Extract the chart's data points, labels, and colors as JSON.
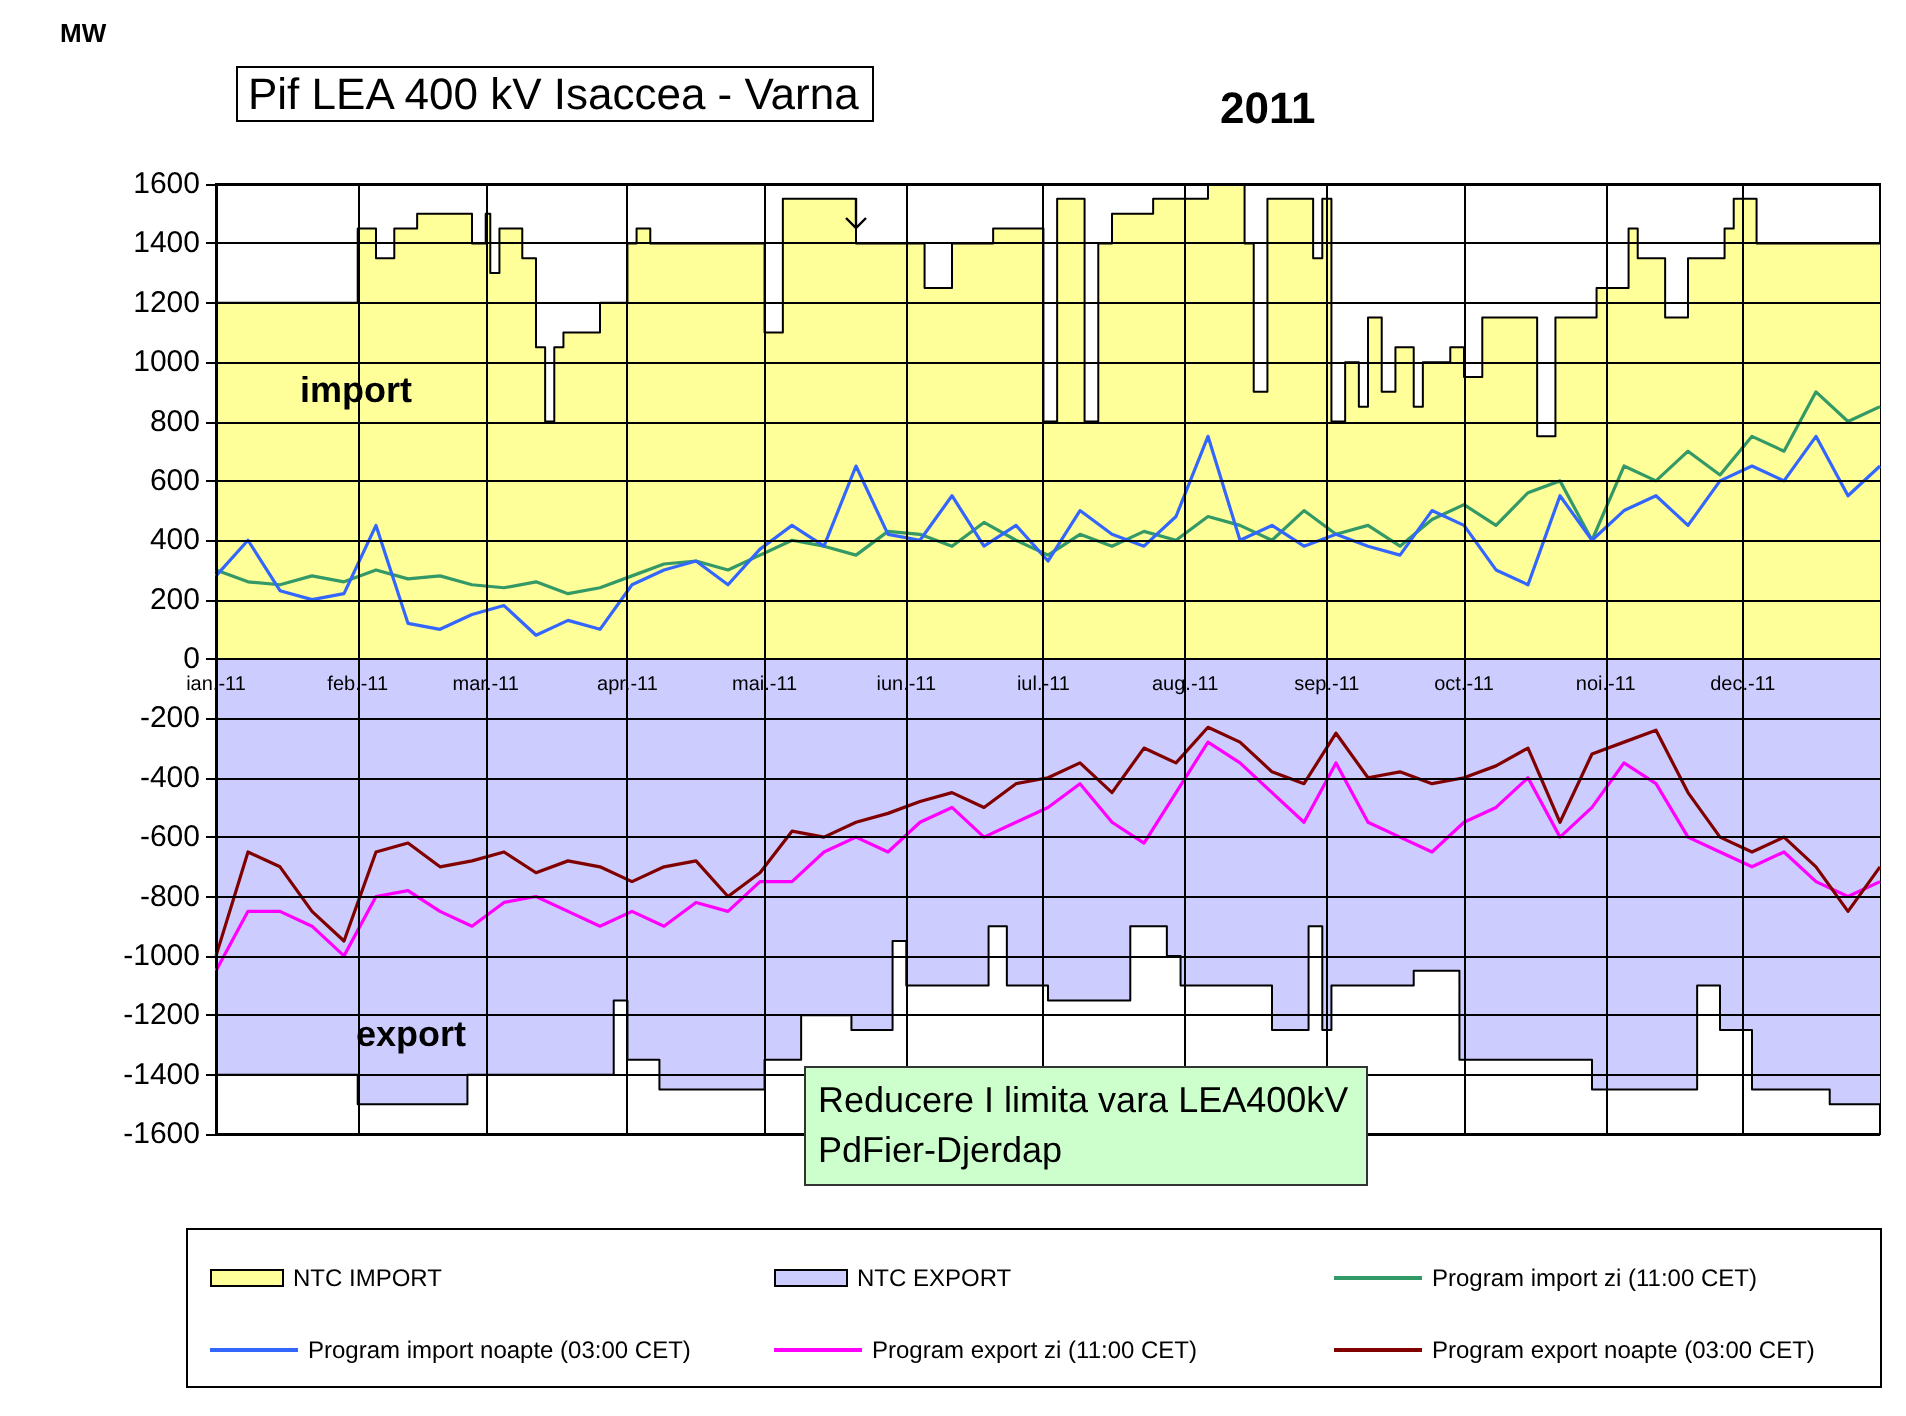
{
  "chart_data": {
    "type": "line",
    "title": "Pif LEA 400 kV Isaccea - Varna",
    "subtitle": "2011",
    "ylabel": "MW",
    "annotations": [
      "import",
      "export",
      "Reducere  I limita vara LEA400kV  PdFier-Djerdap"
    ],
    "xlim": [
      "2011-01-01",
      "2011-12-31"
    ],
    "xticks": [
      {
        "value": "2011-01-01",
        "label": "ian.-11"
      },
      {
        "value": "2011-02-01",
        "label": "feb.-11"
      },
      {
        "value": "2011-03-01",
        "label": "mar.-11"
      },
      {
        "value": "2011-04-01",
        "label": "apr.-11"
      },
      {
        "value": "2011-05-01",
        "label": "mai.-11"
      },
      {
        "value": "2011-06-01",
        "label": "iun.-11"
      },
      {
        "value": "2011-07-01",
        "label": "iul.-11"
      },
      {
        "value": "2011-08-01",
        "label": "aug.-11"
      },
      {
        "value": "2011-09-01",
        "label": "sep.-11"
      },
      {
        "value": "2011-10-01",
        "label": "oct.-11"
      },
      {
        "value": "2011-11-01",
        "label": "noi.-11"
      },
      {
        "value": "2011-12-01",
        "label": "dec.-11"
      }
    ],
    "ylim": [
      -1600,
      1600
    ],
    "yticks": [
      -1600,
      -1400,
      -1200,
      -1000,
      -800,
      -600,
      -400,
      -200,
      0,
      200,
      400,
      600,
      800,
      1000,
      1200,
      1400,
      1600
    ],
    "grid": true,
    "legend": "bottom",
    "series": [
      {
        "name": "NTC IMPORT",
        "type": "area",
        "color": "#ffff99",
        "x": [
          "2011-01-01",
          "2011-02-01",
          "2011-02-01",
          "2011-02-05",
          "2011-02-05",
          "2011-02-09",
          "2011-02-09",
          "2011-02-14",
          "2011-02-14",
          "2011-02-26",
          "2011-02-26",
          "2011-03-01",
          "2011-03-01",
          "2011-03-02",
          "2011-03-02",
          "2011-03-04",
          "2011-03-04",
          "2011-03-09",
          "2011-03-09",
          "2011-03-12",
          "2011-03-12",
          "2011-03-14",
          "2011-03-14",
          "2011-03-16",
          "2011-03-16",
          "2011-03-18",
          "2011-03-18",
          "2011-03-26",
          "2011-03-26",
          "2011-04-01",
          "2011-04-01",
          "2011-04-03",
          "2011-04-03",
          "2011-04-06",
          "2011-04-06",
          "2011-05-01",
          "2011-05-01",
          "2011-05-05",
          "2011-05-05",
          "2011-05-21",
          "2011-05-21",
          "2011-06-05",
          "2011-06-05",
          "2011-06-11",
          "2011-06-11",
          "2011-06-20",
          "2011-06-20",
          "2011-07-01",
          "2011-07-01",
          "2011-07-04",
          "2011-07-04",
          "2011-07-10",
          "2011-07-10",
          "2011-07-13",
          "2011-07-13",
          "2011-07-16",
          "2011-07-16",
          "2011-07-25",
          "2011-07-25",
          "2011-08-06",
          "2011-08-06",
          "2011-08-14",
          "2011-08-14",
          "2011-08-16",
          "2011-08-16",
          "2011-08-19",
          "2011-08-19",
          "2011-08-29",
          "2011-08-29",
          "2011-08-31",
          "2011-08-31",
          "2011-09-02",
          "2011-09-02",
          "2011-09-05",
          "2011-09-05",
          "2011-09-08",
          "2011-09-08",
          "2011-09-10",
          "2011-09-10",
          "2011-09-13",
          "2011-09-13",
          "2011-09-16",
          "2011-09-16",
          "2011-09-20",
          "2011-09-20",
          "2011-09-22",
          "2011-09-22",
          "2011-09-28",
          "2011-09-28",
          "2011-10-01",
          "2011-10-01",
          "2011-10-05",
          "2011-10-05",
          "2011-10-17",
          "2011-10-17",
          "2011-10-21",
          "2011-10-21",
          "2011-10-30",
          "2011-10-30",
          "2011-11-06",
          "2011-11-06",
          "2011-11-08",
          "2011-11-08",
          "2011-11-14",
          "2011-11-14",
          "2011-11-19",
          "2011-11-19",
          "2011-11-27",
          "2011-11-27",
          "2011-11-29",
          "2011-11-29",
          "2011-12-04",
          "2011-12-04",
          "2011-12-31"
        ],
        "values": [
          1200,
          1200,
          1450,
          1450,
          1350,
          1350,
          1450,
          1450,
          1500,
          1500,
          1400,
          1400,
          1500,
          1500,
          1300,
          1300,
          1450,
          1450,
          1350,
          1350,
          1050,
          1050,
          800,
          800,
          1050,
          1050,
          1100,
          1100,
          1200,
          1200,
          1400,
          1400,
          1450,
          1450,
          1400,
          1400,
          1100,
          1100,
          1550,
          1550,
          1400,
          1400,
          1250,
          1250,
          1400,
          1400,
          1450,
          1450,
          800,
          800,
          1550,
          1550,
          800,
          800,
          1400,
          1400,
          1500,
          1500,
          1550,
          1550,
          1600,
          1600,
          1400,
          1400,
          900,
          900,
          1550,
          1550,
          1350,
          1350,
          1550,
          1550,
          800,
          800,
          1000,
          1000,
          850,
          850,
          1150,
          1150,
          900,
          900,
          1050,
          1050,
          850,
          850,
          1000,
          1000,
          1050,
          1050,
          950,
          950,
          1150,
          1150,
          750,
          750,
          1150,
          1150,
          1250,
          1250,
          1450,
          1450,
          1350,
          1350,
          1150,
          1150,
          1350,
          1350,
          1450,
          1450,
          1550,
          1550,
          1400,
          1400
        ]
      },
      {
        "name": "NTC EXPORT",
        "type": "area",
        "color": "#ccccff",
        "x": [
          "2011-01-01",
          "2011-02-01",
          "2011-02-01",
          "2011-02-25",
          "2011-02-25",
          "2011-03-29",
          "2011-03-29",
          "2011-04-01",
          "2011-04-01",
          "2011-04-08",
          "2011-04-08",
          "2011-05-01",
          "2011-05-01",
          "2011-05-09",
          "2011-05-09",
          "2011-05-20",
          "2011-05-20",
          "2011-05-29",
          "2011-05-29",
          "2011-06-01",
          "2011-06-01",
          "2011-06-19",
          "2011-06-19",
          "2011-06-23",
          "2011-06-23",
          "2011-07-02",
          "2011-07-02",
          "2011-07-20",
          "2011-07-20",
          "2011-07-28",
          "2011-07-28",
          "2011-07-31",
          "2011-07-31",
          "2011-08-20",
          "2011-08-20",
          "2011-08-28",
          "2011-08-28",
          "2011-08-31",
          "2011-08-31",
          "2011-09-02",
          "2011-09-02",
          "2011-09-20",
          "2011-09-20",
          "2011-09-30",
          "2011-09-30",
          "2011-10-29",
          "2011-10-29",
          "2011-11-21",
          "2011-11-21",
          "2011-11-26",
          "2011-11-26",
          "2011-12-03",
          "2011-12-03",
          "2011-12-20",
          "2011-12-20",
          "2011-12-31"
        ],
        "values": [
          -1400,
          -1400,
          -1500,
          -1500,
          -1400,
          -1400,
          -1150,
          -1150,
          -1350,
          -1350,
          -1450,
          -1450,
          -1350,
          -1350,
          -1200,
          -1200,
          -1250,
          -1250,
          -950,
          -950,
          -1100,
          -1100,
          -900,
          -900,
          -1100,
          -1100,
          -1150,
          -1150,
          -900,
          -900,
          -1000,
          -1000,
          -1100,
          -1100,
          -1250,
          -1250,
          -900,
          -900,
          -1250,
          -1250,
          -1100,
          -1100,
          -1050,
          -1050,
          -1350,
          -1350,
          -1450,
          -1450,
          -1100,
          -1100,
          -1250,
          -1250,
          -1450,
          -1450,
          -1500,
          -1500
        ]
      },
      {
        "name": "Program import zi (11:00 CET)",
        "color": "#339966",
        "values": [
          300,
          260,
          250,
          280,
          260,
          300,
          270,
          280,
          250,
          240,
          260,
          220,
          240,
          280,
          320,
          330,
          300,
          350,
          400,
          380,
          350,
          430,
          420,
          380,
          460,
          400,
          350,
          420,
          380,
          430,
          400,
          480,
          450,
          400,
          500,
          420,
          450,
          380,
          470,
          520,
          450,
          560,
          600,
          400,
          650,
          600,
          700,
          620,
          750,
          700,
          900,
          800,
          850
        ]
      },
      {
        "name": "Program import noapte (03:00 CET)",
        "color": "#3366ff",
        "values": [
          280,
          400,
          230,
          200,
          220,
          450,
          120,
          100,
          150,
          180,
          80,
          130,
          100,
          250,
          300,
          330,
          250,
          370,
          450,
          380,
          650,
          420,
          400,
          550,
          380,
          450,
          330,
          500,
          420,
          380,
          480,
          750,
          400,
          450,
          380,
          420,
          380,
          350,
          500,
          450,
          300,
          250,
          550,
          400,
          500,
          550,
          450,
          600,
          650,
          600,
          750,
          550,
          650
        ]
      },
      {
        "name": "Program export zi (11:00 CET)",
        "color": "#ff00ff",
        "values": [
          -1050,
          -850,
          -850,
          -900,
          -1000,
          -800,
          -780,
          -850,
          -900,
          -820,
          -800,
          -850,
          -900,
          -850,
          -900,
          -820,
          -850,
          -750,
          -750,
          -650,
          -600,
          -650,
          -550,
          -500,
          -600,
          -550,
          -500,
          -420,
          -550,
          -620,
          -450,
          -280,
          -350,
          -450,
          -550,
          -350,
          -550,
          -600,
          -650,
          -550,
          -500,
          -400,
          -600,
          -500,
          -350,
          -420,
          -600,
          -650,
          -700,
          -650,
          -750,
          -800,
          -750
        ]
      },
      {
        "name": "Program export noapte (03:00 CET)",
        "color": "#800000",
        "values": [
          -1000,
          -650,
          -700,
          -850,
          -950,
          -650,
          -620,
          -700,
          -680,
          -650,
          -720,
          -680,
          -700,
          -750,
          -700,
          -680,
          -800,
          -720,
          -580,
          -600,
          -550,
          -520,
          -480,
          -450,
          -500,
          -420,
          -400,
          -350,
          -450,
          -300,
          -350,
          -230,
          -280,
          -380,
          -420,
          -250,
          -400,
          -380,
          -420,
          -400,
          -360,
          -300,
          -550,
          -320,
          -280,
          -240,
          -450,
          -600,
          -650,
          -600,
          -700,
          -850,
          -700
        ]
      }
    ],
    "x": [
      "2011-01-01",
      "2011-01-08",
      "2011-01-15",
      "2011-01-22",
      "2011-01-29",
      "2011-02-05",
      "2011-02-12",
      "2011-02-19",
      "2011-02-26",
      "2011-03-05",
      "2011-03-12",
      "2011-03-19",
      "2011-03-26",
      "2011-04-02",
      "2011-04-09",
      "2011-04-16",
      "2011-04-23",
      "2011-04-30",
      "2011-05-07",
      "2011-05-14",
      "2011-05-21",
      "2011-05-28",
      "2011-06-04",
      "2011-06-11",
      "2011-06-18",
      "2011-06-25",
      "2011-07-02",
      "2011-07-09",
      "2011-07-16",
      "2011-07-23",
      "2011-07-30",
      "2011-08-06",
      "2011-08-13",
      "2011-08-20",
      "2011-08-27",
      "2011-09-03",
      "2011-09-10",
      "2011-09-17",
      "2011-09-24",
      "2011-10-01",
      "2011-10-08",
      "2011-10-15",
      "2011-10-22",
      "2011-10-29",
      "2011-11-05",
      "2011-11-12",
      "2011-11-19",
      "2011-11-26",
      "2011-12-03",
      "2011-12-10",
      "2011-12-17",
      "2011-12-24",
      "2011-12-31"
    ]
  }
}
